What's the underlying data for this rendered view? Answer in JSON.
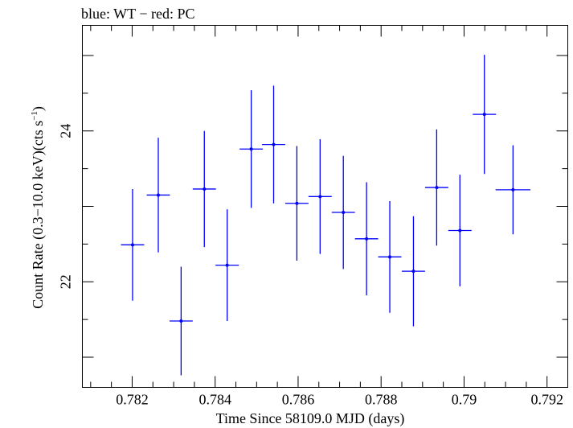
{
  "chart_data": {
    "type": "scatter",
    "title": "blue: WT − red: PC",
    "xlabel": "Time Since 58109.0 MJD (days)",
    "ylabel": "Count Rate (0.3−10.0 keV)(cts s",
    "ylabel_sup": "−1",
    "ylabel_end": ")",
    "xlim": [
      0.7808,
      0.7925
    ],
    "ylim": [
      20.6,
      25.4
    ],
    "x_ticks": [
      0.782,
      0.784,
      0.786,
      0.788,
      0.79,
      0.792
    ],
    "x_tick_labels": [
      "0.782",
      "0.784",
      "0.786",
      "0.788",
      "0.79",
      "0.792"
    ],
    "y_ticks": [
      22,
      24
    ],
    "y_tick_labels": [
      "22",
      "24"
    ],
    "grid": false,
    "series": [
      {
        "color": "#0000ff",
        "points": [
          {
            "x": 0.78201,
            "xerr": 0.00028,
            "y": 22.49,
            "yerr": 0.74
          },
          {
            "x": 0.78263,
            "xerr": 0.00028,
            "y": 23.15,
            "yerr": 0.76
          },
          {
            "x": 0.78318,
            "xerr": 0.00028,
            "y": 21.48,
            "yerr": 0.72
          },
          {
            "x": 0.78374,
            "xerr": 0.00028,
            "y": 23.23,
            "yerr": 0.77
          },
          {
            "x": 0.78429,
            "xerr": 0.00028,
            "y": 22.22,
            "yerr": 0.74
          },
          {
            "x": 0.78487,
            "xerr": 0.00028,
            "y": 23.76,
            "yerr": 0.78
          },
          {
            "x": 0.78541,
            "xerr": 0.00028,
            "y": 23.82,
            "yerr": 0.78
          },
          {
            "x": 0.78597,
            "xerr": 0.00028,
            "y": 23.04,
            "yerr": 0.76
          },
          {
            "x": 0.78653,
            "xerr": 0.00028,
            "y": 23.13,
            "yerr": 0.76
          },
          {
            "x": 0.78709,
            "xerr": 0.00028,
            "y": 22.92,
            "yerr": 0.75
          },
          {
            "x": 0.78765,
            "xerr": 0.00028,
            "y": 22.57,
            "yerr": 0.75
          },
          {
            "x": 0.78821,
            "xerr": 0.00028,
            "y": 22.33,
            "yerr": 0.74
          },
          {
            "x": 0.78878,
            "xerr": 0.00028,
            "y": 22.14,
            "yerr": 0.73
          },
          {
            "x": 0.78934,
            "xerr": 0.00028,
            "y": 23.25,
            "yerr": 0.77
          },
          {
            "x": 0.7899,
            "xerr": 0.00028,
            "y": 22.68,
            "yerr": 0.74
          },
          {
            "x": 0.79049,
            "xerr": 0.00028,
            "y": 24.22,
            "yerr": 0.79
          },
          {
            "x": 0.79118,
            "xerr": 0.00042,
            "y": 23.22,
            "yerr": 0.59
          }
        ]
      }
    ]
  }
}
